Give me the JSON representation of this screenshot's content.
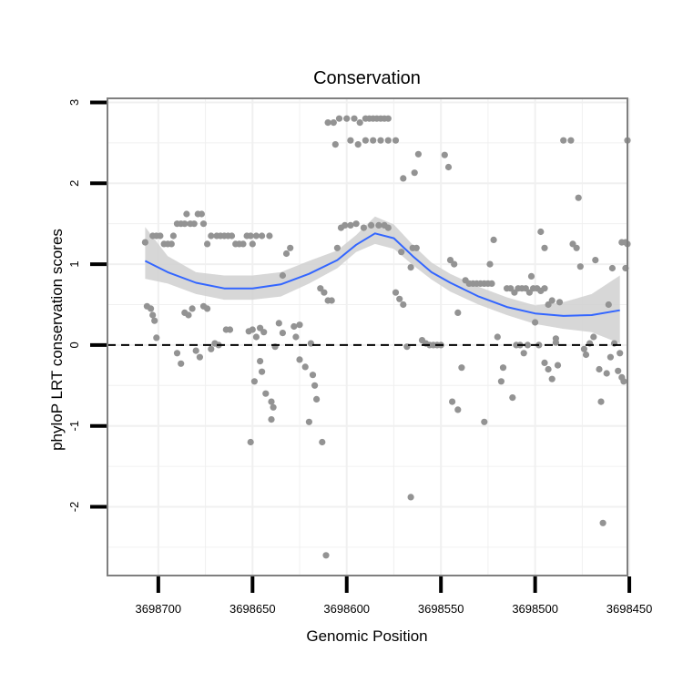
{
  "chart_data": {
    "type": "scatter",
    "title": "Conservation",
    "xlabel": "Genomic Position",
    "ylabel": "phyloP LRT conservation scores",
    "xlim": [
      3698727,
      3698451
    ],
    "ylim": [
      -2.85,
      3.05
    ],
    "x_reversed": true,
    "x_ticks": [
      3698700,
      3698650,
      3698600,
      3698550,
      3698500,
      3698450
    ],
    "x_tick_labels": [
      "3698700",
      "3698650",
      "3698600",
      "3698550",
      "3698500",
      "3698450"
    ],
    "y_ticks": [
      -2,
      -1,
      0,
      1,
      2,
      3
    ],
    "y_tick_labels": [
      "-2",
      "-1",
      "0",
      "1",
      "2",
      "3"
    ],
    "grid": true,
    "reference_line": {
      "y": 0,
      "style": "dashed",
      "color": "#000000"
    },
    "colors": {
      "points": "#939393",
      "smooth": "#3366ff",
      "ribbon": "#d0d0d0",
      "panel_border": "#7f7f7f",
      "grid": "#f0f0f0"
    },
    "smooth": {
      "x": [
        3698707,
        3698695,
        3698680,
        3698665,
        3698650,
        3698635,
        3698620,
        3698605,
        3698595,
        3698585,
        3698575,
        3698565,
        3698555,
        3698545,
        3698530,
        3698515,
        3698500,
        3698485,
        3698470,
        3698455
      ],
      "y": [
        1.04,
        0.9,
        0.77,
        0.7,
        0.7,
        0.75,
        0.88,
        1.05,
        1.24,
        1.38,
        1.32,
        1.1,
        0.9,
        0.77,
        0.6,
        0.47,
        0.39,
        0.36,
        0.37,
        0.43
      ],
      "lower": [
        0.82,
        0.76,
        0.63,
        0.56,
        0.56,
        0.6,
        0.76,
        0.95,
        1.15,
        1.25,
        1.19,
        0.99,
        0.81,
        0.66,
        0.5,
        0.37,
        0.26,
        0.2,
        0.16,
        0.02
      ],
      "upper": [
        1.46,
        1.1,
        0.9,
        0.86,
        0.86,
        0.9,
        1.04,
        1.17,
        1.36,
        1.59,
        1.49,
        1.24,
        1.02,
        0.88,
        0.72,
        0.59,
        0.49,
        0.53,
        0.63,
        0.86
      ]
    },
    "points": [
      [
        3698707,
        1.27
      ],
      [
        3698706,
        0.48
      ],
      [
        3698704,
        0.45
      ],
      [
        3698703,
        0.37
      ],
      [
        3698702,
        0.3
      ],
      [
        3698701,
        0.09
      ],
      [
        3698703,
        1.35
      ],
      [
        3698701,
        1.35
      ],
      [
        3698699,
        1.35
      ],
      [
        3698697,
        1.25
      ],
      [
        3698695,
        1.25
      ],
      [
        3698693,
        1.25
      ],
      [
        3698692,
        1.35
      ],
      [
        3698690,
        1.5
      ],
      [
        3698688,
        1.5
      ],
      [
        3698686,
        1.5
      ],
      [
        3698685,
        1.62
      ],
      [
        3698683,
        1.5
      ],
      [
        3698681,
        1.5
      ],
      [
        3698679,
        1.62
      ],
      [
        3698677,
        1.62
      ],
      [
        3698676,
        1.5
      ],
      [
        3698674,
        1.25
      ],
      [
        3698672,
        1.35
      ],
      [
        3698669,
        1.35
      ],
      [
        3698667,
        1.35
      ],
      [
        3698665,
        1.35
      ],
      [
        3698663,
        1.35
      ],
      [
        3698661,
        1.35
      ],
      [
        3698659,
        1.25
      ],
      [
        3698657,
        1.25
      ],
      [
        3698655,
        1.25
      ],
      [
        3698653,
        1.35
      ],
      [
        3698651,
        1.35
      ],
      [
        3698650,
        1.25
      ],
      [
        3698648,
        1.35
      ],
      [
        3698645,
        1.35
      ],
      [
        3698641,
        1.35
      ],
      [
        3698690,
        -0.1
      ],
      [
        3698688,
        -0.23
      ],
      [
        3698686,
        0.4
      ],
      [
        3698684,
        0.37
      ],
      [
        3698682,
        0.45
      ],
      [
        3698680,
        -0.07
      ],
      [
        3698678,
        -0.15
      ],
      [
        3698676,
        0.48
      ],
      [
        3698674,
        0.45
      ],
      [
        3698672,
        -0.05
      ],
      [
        3698670,
        0.02
      ],
      [
        3698668,
        0.0
      ],
      [
        3698664,
        0.19
      ],
      [
        3698662,
        0.19
      ],
      [
        3698652,
        0.17
      ],
      [
        3698650,
        0.19
      ],
      [
        3698648,
        0.1
      ],
      [
        3698646,
        0.21
      ],
      [
        3698644,
        0.16
      ],
      [
        3698651,
        -1.2
      ],
      [
        3698649,
        -0.45
      ],
      [
        3698646,
        -0.2
      ],
      [
        3698645,
        -0.33
      ],
      [
        3698643,
        -0.6
      ],
      [
        3698640,
        -0.7
      ],
      [
        3698639,
        -0.77
      ],
      [
        3698640,
        -0.92
      ],
      [
        3698638,
        -0.02
      ],
      [
        3698636,
        0.27
      ],
      [
        3698634,
        0.15
      ],
      [
        3698632,
        1.13
      ],
      [
        3698630,
        1.2
      ],
      [
        3698628,
        0.23
      ],
      [
        3698627,
        0.1
      ],
      [
        3698625,
        0.25
      ],
      [
        3698625,
        -0.18
      ],
      [
        3698622,
        -0.27
      ],
      [
        3698620,
        -0.95
      ],
      [
        3698619,
        0.02
      ],
      [
        3698618,
        -0.37
      ],
      [
        3698617,
        -0.5
      ],
      [
        3698616,
        -0.67
      ],
      [
        3698614,
        0.7
      ],
      [
        3698612,
        0.65
      ],
      [
        3698613,
        -1.2
      ],
      [
        3698610,
        0.55
      ],
      [
        3698608,
        0.55
      ],
      [
        3698611,
        -2.6
      ],
      [
        3698634,
        0.86
      ],
      [
        3698610,
        2.75
      ],
      [
        3698607,
        2.75
      ],
      [
        3698606,
        2.48
      ],
      [
        3698604,
        2.8
      ],
      [
        3698600,
        2.8
      ],
      [
        3698596,
        2.8
      ],
      [
        3698593,
        2.75
      ],
      [
        3698590,
        2.8
      ],
      [
        3698588,
        2.8
      ],
      [
        3698586,
        2.8
      ],
      [
        3698584,
        2.8
      ],
      [
        3698582,
        2.8
      ],
      [
        3698580,
        2.8
      ],
      [
        3698578,
        2.8
      ],
      [
        3698598,
        2.53
      ],
      [
        3698594,
        2.48
      ],
      [
        3698590,
        2.53
      ],
      [
        3698586,
        2.53
      ],
      [
        3698582,
        2.53
      ],
      [
        3698578,
        2.53
      ],
      [
        3698574,
        2.53
      ],
      [
        3698605,
        1.2
      ],
      [
        3698603,
        1.45
      ],
      [
        3698601,
        1.48
      ],
      [
        3698598,
        1.48
      ],
      [
        3698595,
        1.5
      ],
      [
        3698591,
        1.45
      ],
      [
        3698587,
        1.48
      ],
      [
        3698583,
        1.48
      ],
      [
        3698580,
        1.48
      ],
      [
        3698578,
        1.45
      ],
      [
        3698574,
        0.65
      ],
      [
        3698572,
        0.57
      ],
      [
        3698570,
        0.5
      ],
      [
        3698568,
        -0.02
      ],
      [
        3698566,
        0.96
      ],
      [
        3698565,
        1.2
      ],
      [
        3698563,
        1.2
      ],
      [
        3698566,
        -1.88
      ],
      [
        3698564,
        2.13
      ],
      [
        3698562,
        2.36
      ],
      [
        3698570,
        2.06
      ],
      [
        3698571,
        1.15
      ],
      [
        3698560,
        0.06
      ],
      [
        3698558,
        0.02
      ],
      [
        3698556,
        0.0
      ],
      [
        3698554,
        0.0
      ],
      [
        3698552,
        0.0
      ],
      [
        3698550,
        0.0
      ],
      [
        3698548,
        2.35
      ],
      [
        3698546,
        2.2
      ],
      [
        3698545,
        1.05
      ],
      [
        3698543,
        1.0
      ],
      [
        3698541,
        0.4
      ],
      [
        3698539,
        -0.28
      ],
      [
        3698537,
        0.8
      ],
      [
        3698535,
        0.76
      ],
      [
        3698533,
        0.76
      ],
      [
        3698531,
        0.76
      ],
      [
        3698529,
        0.76
      ],
      [
        3698527,
        0.76
      ],
      [
        3698525,
        0.76
      ],
      [
        3698523,
        0.76
      ],
      [
        3698544,
        -0.7
      ],
      [
        3698541,
        -0.8
      ],
      [
        3698527,
        -0.95
      ],
      [
        3698524,
        1.0
      ],
      [
        3698522,
        1.3
      ],
      [
        3698520,
        0.1
      ],
      [
        3698518,
        -0.45
      ],
      [
        3698517,
        -0.28
      ],
      [
        3698515,
        0.7
      ],
      [
        3698513,
        0.7
      ],
      [
        3698511,
        0.65
      ],
      [
        3698509,
        0.7
      ],
      [
        3698507,
        0.7
      ],
      [
        3698505,
        0.7
      ],
      [
        3698503,
        0.65
      ],
      [
        3698501,
        0.7
      ],
      [
        3698499,
        0.7
      ],
      [
        3698497,
        0.67
      ],
      [
        3698495,
        0.7
      ],
      [
        3698512,
        -0.65
      ],
      [
        3698510,
        0.0
      ],
      [
        3698508,
        0.0
      ],
      [
        3698506,
        -0.1
      ],
      [
        3698504,
        0.0
      ],
      [
        3698502,
        0.85
      ],
      [
        3698500,
        0.28
      ],
      [
        3698497,
        1.4
      ],
      [
        3698495,
        1.2
      ],
      [
        3698493,
        0.5
      ],
      [
        3698491,
        0.55
      ],
      [
        3698489,
        0.08
      ],
      [
        3698487,
        0.53
      ],
      [
        3698485,
        2.53
      ],
      [
        3698481,
        2.53
      ],
      [
        3698480,
        1.25
      ],
      [
        3698478,
        1.2
      ],
      [
        3698477,
        1.82
      ],
      [
        3698476,
        0.97
      ],
      [
        3698474,
        -0.05
      ],
      [
        3698473,
        -0.12
      ],
      [
        3698471,
        0.02
      ],
      [
        3698469,
        0.1
      ],
      [
        3698468,
        1.05
      ],
      [
        3698466,
        -0.3
      ],
      [
        3698465,
        -0.7
      ],
      [
        3698464,
        -2.2
      ],
      [
        3698462,
        -0.35
      ],
      [
        3698461,
        0.5
      ],
      [
        3698460,
        -0.15
      ],
      [
        3698459,
        0.95
      ],
      [
        3698458,
        0.02
      ],
      [
        3698456,
        -0.32
      ],
      [
        3698455,
        -0.1
      ],
      [
        3698454,
        -0.4
      ],
      [
        3698453,
        -0.45
      ],
      [
        3698452,
        0.95
      ],
      [
        3698451,
        1.25
      ],
      [
        3698451,
        2.53
      ],
      [
        3698452,
        1.27
      ],
      [
        3698454,
        1.27
      ],
      [
        3698495,
        -0.22
      ],
      [
        3698493,
        -0.3
      ],
      [
        3698491,
        -0.42
      ],
      [
        3698489,
        0.03
      ],
      [
        3698498,
        0.0
      ],
      [
        3698488,
        -0.25
      ]
    ]
  }
}
